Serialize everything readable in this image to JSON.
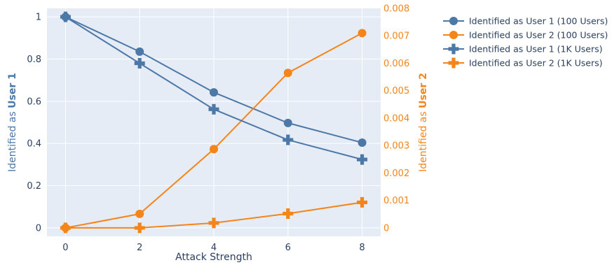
{
  "chart_data": {
    "type": "line",
    "xlabel": "Attack Strength",
    "ylabel_left": {
      "prefix": "Identified as ",
      "bold": "User 1"
    },
    "ylabel_right": {
      "prefix": "Identified as ",
      "bold": "User 2"
    },
    "x": [
      0,
      2,
      4,
      6,
      8
    ],
    "x_ticks": [
      "0",
      "2",
      "4",
      "6",
      "8"
    ],
    "y_left_ticks": [
      "0",
      "0.2",
      "0.4",
      "0.6",
      "0.8",
      "1"
    ],
    "y_right_ticks": [
      "0",
      "0.001",
      "0.002",
      "0.003",
      "0.004",
      "0.005",
      "0.006",
      "0.007",
      "0.008"
    ],
    "xlim": [
      -0.5,
      8.5
    ],
    "ylim_left": [
      -0.04,
      1.04
    ],
    "ylim_right": [
      -0.000308,
      0.008
    ],
    "grid": true,
    "legend_placement": "top-right outside",
    "colors": {
      "left_axis": "#4c78a8",
      "right_axis": "#f58518",
      "plot_bg": "#e5ecf6",
      "grid": "#ffffff"
    },
    "series": [
      {
        "name": "Identified as User 1 (100 Users)",
        "axis": "left",
        "marker": "circle",
        "color": "#4c78a8",
        "values": [
          1.0,
          0.835,
          0.642,
          0.497,
          0.404
        ]
      },
      {
        "name": "Identified as User 2 (100 Users)",
        "axis": "right",
        "marker": "circle",
        "color": "#f58518",
        "values": [
          0.0,
          0.00051,
          0.00287,
          0.00565,
          0.0071
        ]
      },
      {
        "name": "Identified as User 1 (1K Users)",
        "axis": "left",
        "marker": "cross",
        "color": "#4c78a8",
        "values": [
          1.0,
          0.78,
          0.562,
          0.417,
          0.324
        ]
      },
      {
        "name": "Identified as User 2 (1K Users)",
        "axis": "right",
        "marker": "cross",
        "color": "#f58518",
        "values": [
          0.0,
          0.0,
          0.00018,
          0.00052,
          0.00093
        ]
      }
    ]
  }
}
